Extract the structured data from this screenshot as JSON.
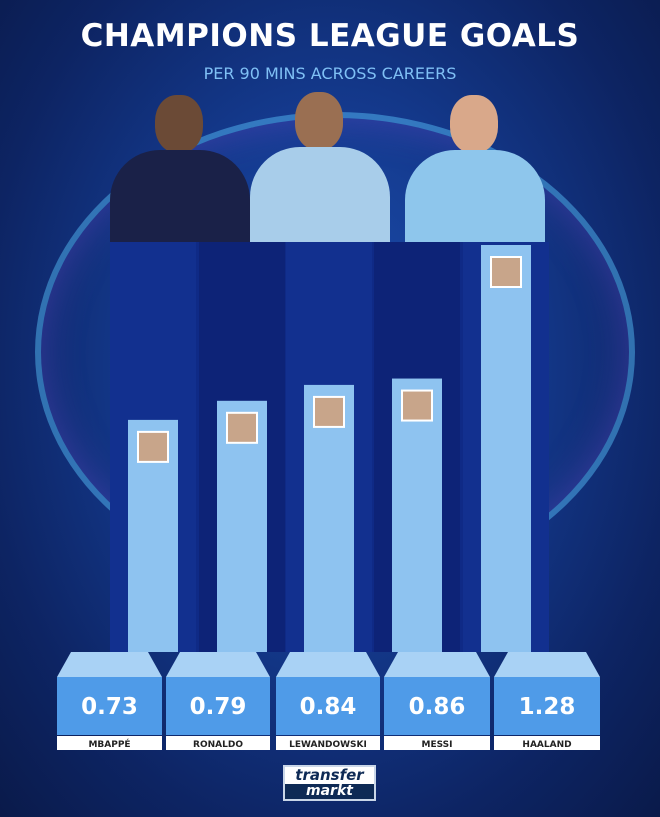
{
  "chart_data": {
    "type": "bar",
    "title": "CHAMPIONS LEAGUE GOALS",
    "subtitle": "PER 90 MINS ACROSS CAREERS",
    "categories": [
      "MBAPPÉ",
      "RONALDO",
      "LEWANDOWSKI",
      "MESSI",
      "HAALAND"
    ],
    "values": [
      0.73,
      0.79,
      0.84,
      0.86,
      1.28
    ],
    "value_labels": [
      "0.73",
      "0.79",
      "0.84",
      "0.86",
      "1.28"
    ],
    "ylim": [
      0,
      1.28
    ],
    "grid": false,
    "colors": {
      "bar": "#8ec3f0",
      "base": "#4f9be8",
      "base_top": "#a9d2f5",
      "column_bg": "#0f2a86",
      "label_bg": "#ffffff"
    }
  },
  "logo": {
    "line1": "transfer",
    "line2": "markt"
  }
}
